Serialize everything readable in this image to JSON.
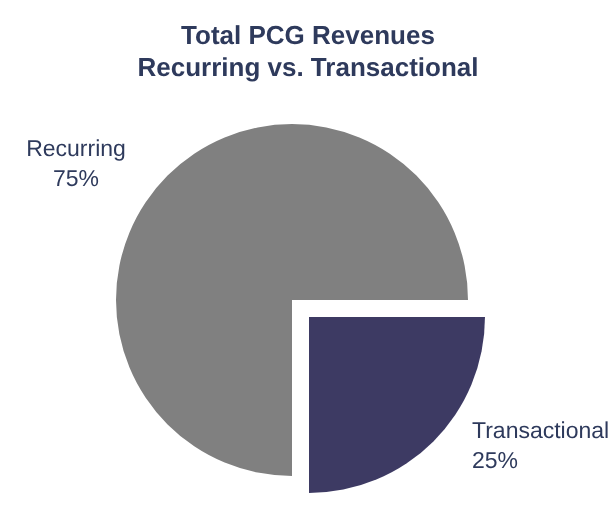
{
  "chart_data": {
    "type": "pie",
    "title": "Total PCG Revenues\nRecurring vs. Transactional",
    "categories": [
      "Recurring",
      "Transactional"
    ],
    "values": [
      75,
      25
    ],
    "value_labels": [
      "75%",
      "25%"
    ],
    "colors": [
      "#808080",
      "#3d3a63"
    ]
  }
}
